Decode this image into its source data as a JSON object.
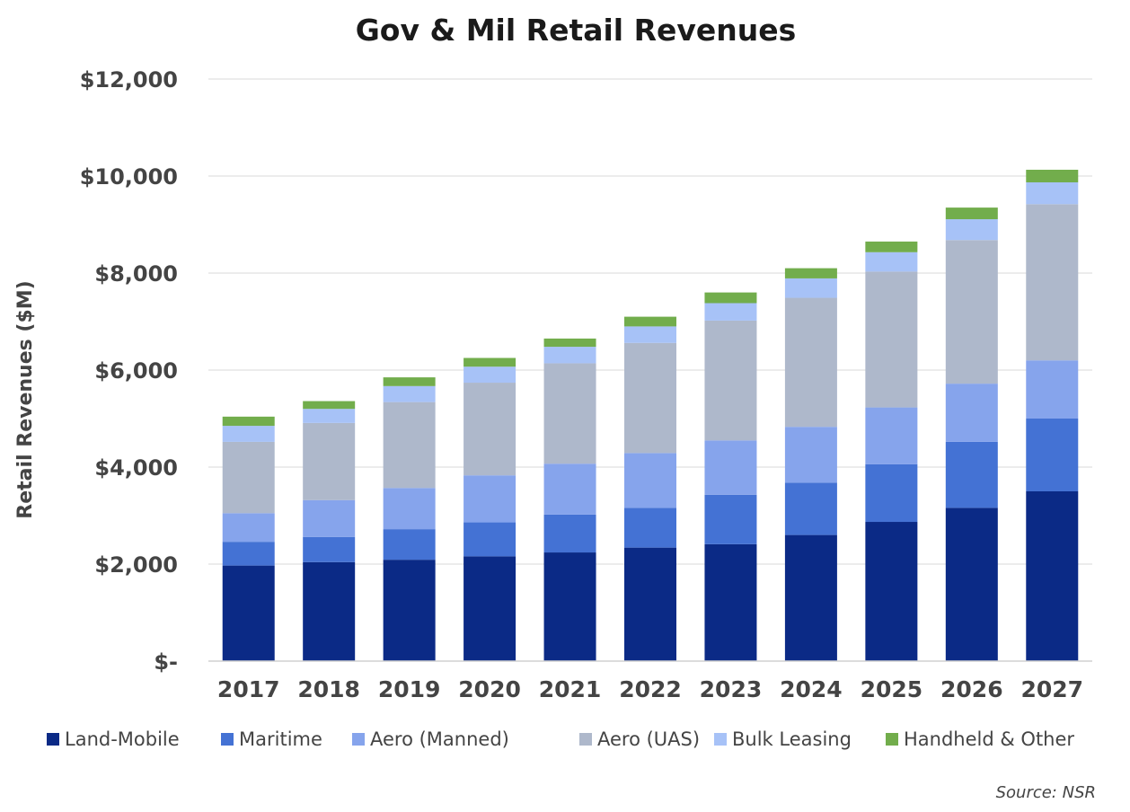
{
  "chart_data": {
    "type": "bar",
    "stacked": true,
    "title": "Gov & Mil Retail Revenues",
    "ylabel": "Retail Revenues ($M)",
    "xlabel": "",
    "ylim": [
      0,
      12000
    ],
    "yticks": [
      0,
      2000,
      4000,
      6000,
      8000,
      10000,
      12000
    ],
    "ytick_labels": [
      "$-",
      "$2,000",
      "$4,000",
      "$6,000",
      "$8,000",
      "$10,000",
      "$12,000"
    ],
    "grid": true,
    "legend_position": "bottom",
    "categories": [
      "2017",
      "2018",
      "2019",
      "2020",
      "2021",
      "2022",
      "2023",
      "2024",
      "2025",
      "2026",
      "2027"
    ],
    "series": [
      {
        "name": "Land-Mobile",
        "color": "#0b2a86",
        "values": [
          1970,
          2040,
          2090,
          2160,
          2240,
          2340,
          2410,
          2600,
          2870,
          3160,
          3500
        ]
      },
      {
        "name": "Maritime",
        "color": "#4472d4",
        "values": [
          490,
          520,
          630,
          700,
          780,
          820,
          1020,
          1080,
          1190,
          1360,
          1500
        ]
      },
      {
        "name": "Aero (Manned)",
        "color": "#86a4ec",
        "values": [
          590,
          760,
          850,
          970,
          1050,
          1130,
          1120,
          1150,
          1170,
          1200,
          1200
        ]
      },
      {
        "name": "Aero (UAS)",
        "color": "#aeb8cb",
        "values": [
          1470,
          1590,
          1770,
          1910,
          2070,
          2270,
          2470,
          2660,
          2800,
          2960,
          3220
        ]
      },
      {
        "name": "Bulk Leasing",
        "color": "#a7c2f7",
        "values": [
          330,
          290,
          330,
          330,
          340,
          340,
          360,
          400,
          400,
          430,
          450
        ]
      },
      {
        "name": "Handheld & Other",
        "color": "#72ad4c",
        "values": [
          190,
          160,
          180,
          180,
          170,
          200,
          220,
          210,
          220,
          240,
          260
        ]
      }
    ],
    "source": "Source: NSR"
  }
}
